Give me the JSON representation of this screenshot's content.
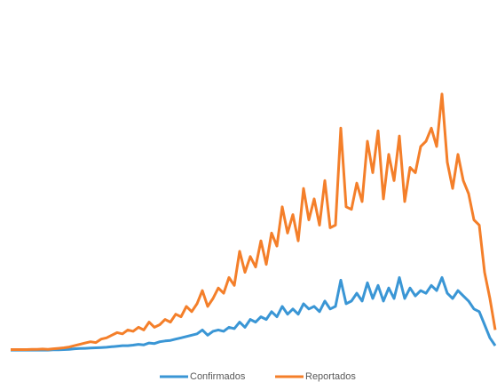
{
  "chart_data": {
    "type": "line",
    "ylim": [
      0,
      100
    ],
    "legend": "bottom",
    "series": [
      {
        "name": "Confirmados",
        "color": "#3a96d5",
        "values": [
          0.3,
          0.3,
          0.3,
          0.3,
          0.3,
          0.3,
          0.3,
          0.3,
          0.4,
          0.4,
          0.5,
          0.6,
          0.8,
          0.9,
          1,
          1.1,
          1.2,
          1.3,
          1.4,
          1.6,
          1.8,
          2,
          2,
          2.2,
          2.5,
          2.3,
          3,
          2.8,
          3.5,
          3.8,
          4,
          4.5,
          5,
          5.5,
          6,
          6.5,
          8,
          6,
          7.5,
          8,
          7.5,
          9,
          8.5,
          11,
          9,
          12,
          11,
          13,
          12,
          15,
          13,
          17,
          14,
          16,
          14,
          18,
          16,
          17,
          15,
          19,
          16,
          17,
          27,
          18,
          19,
          22,
          19,
          26,
          20,
          25,
          19,
          24,
          20,
          28,
          20,
          24,
          21,
          23,
          22,
          25,
          23,
          28,
          22,
          20,
          23,
          21,
          19,
          16,
          15,
          10,
          5,
          2
        ]
      },
      {
        "name": "Reportados",
        "color": "#f47f2a",
        "values": [
          0.5,
          0.5,
          0.5,
          0.5,
          0.6,
          0.6,
          0.7,
          0.6,
          0.8,
          1,
          1.2,
          1.5,
          2,
          2.5,
          3,
          3.5,
          3.2,
          4.5,
          5,
          6,
          7,
          6.5,
          8,
          7.5,
          9,
          8,
          11,
          9,
          10,
          12,
          11,
          14,
          13,
          17,
          15,
          18,
          23,
          17,
          20,
          24,
          22,
          28,
          25,
          38,
          30,
          36,
          32,
          42,
          33,
          45,
          40,
          55,
          45,
          52,
          42,
          62,
          50,
          58,
          48,
          65,
          47,
          48,
          85,
          55,
          54,
          64,
          57,
          80,
          68,
          84,
          58,
          75,
          65,
          82,
          57,
          70,
          68,
          78,
          80,
          85,
          78,
          98,
          72,
          62,
          75,
          65,
          60,
          50,
          48,
          30,
          20,
          8
        ]
      }
    ]
  }
}
